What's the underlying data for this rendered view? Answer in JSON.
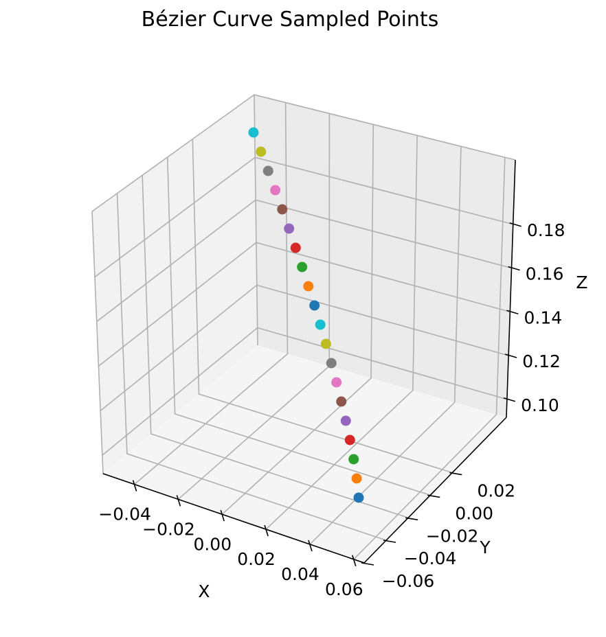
{
  "chart_data": {
    "type": "scatter",
    "title": "Bézier Curve Sampled Points",
    "xlabel": "X",
    "ylabel": "Y",
    "zlabel": "Z",
    "x_ticks": [
      "−0.04",
      "−0.02",
      "0.00",
      "0.02",
      "0.04",
      "0.06"
    ],
    "y_ticks": [
      "−0.06",
      "−0.04",
      "−0.02",
      "0.00",
      "0.02"
    ],
    "z_ticks": [
      "0.10",
      "0.12",
      "0.14",
      "0.16",
      "0.18"
    ],
    "grid": true,
    "colors": [
      "#1f77b4",
      "#ff7f0e",
      "#2ca02c",
      "#d62728",
      "#9467bd",
      "#8c564b",
      "#e377c2",
      "#7f7f7f",
      "#bcbd22",
      "#17becf"
    ],
    "points": [
      {
        "x": 0.045,
        "y": 0.0,
        "z": 0.09
      },
      {
        "x": 0.045,
        "y": 0.0,
        "z": 0.095
      },
      {
        "x": 0.045,
        "y": 0.0,
        "z": 0.1
      },
      {
        "x": 0.045,
        "y": 0.0,
        "z": 0.105
      },
      {
        "x": 0.045,
        "y": 0.0,
        "z": 0.11
      },
      {
        "x": 0.045,
        "y": 0.0,
        "z": 0.115
      },
      {
        "x": 0.045,
        "y": 0.0,
        "z": 0.12
      },
      {
        "x": 0.045,
        "y": 0.0,
        "z": 0.125
      },
      {
        "x": 0.045,
        "y": 0.0,
        "z": 0.13
      },
      {
        "x": 0.045,
        "y": 0.0,
        "z": 0.135
      },
      {
        "x": 0.045,
        "y": 0.0,
        "z": 0.14
      },
      {
        "x": 0.045,
        "y": 0.0,
        "z": 0.145
      },
      {
        "x": 0.045,
        "y": 0.0,
        "z": 0.15
      },
      {
        "x": 0.045,
        "y": 0.0,
        "z": 0.155
      },
      {
        "x": 0.045,
        "y": 0.0,
        "z": 0.16
      },
      {
        "x": 0.045,
        "y": 0.0,
        "z": 0.165
      },
      {
        "x": 0.045,
        "y": 0.0,
        "z": 0.17
      },
      {
        "x": 0.045,
        "y": 0.0,
        "z": 0.175
      },
      {
        "x": 0.045,
        "y": 0.0,
        "z": 0.18
      },
      {
        "x": 0.045,
        "y": 0.0,
        "z": 0.185
      }
    ]
  }
}
